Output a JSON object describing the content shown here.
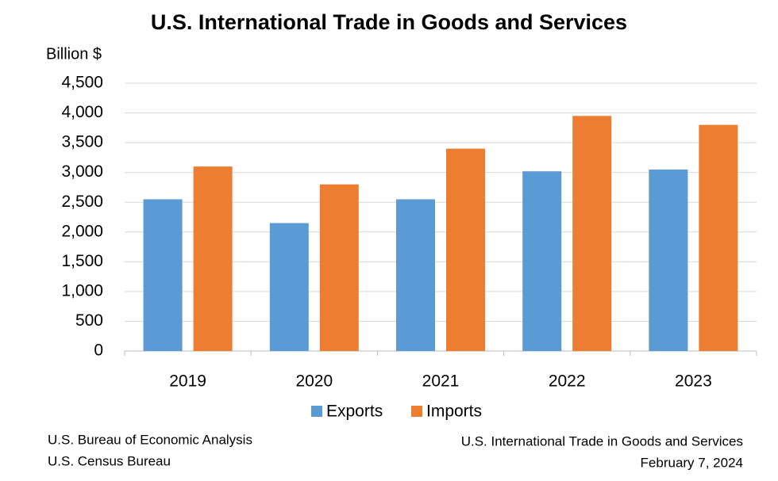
{
  "chart_data": {
    "type": "bar",
    "title": "U.S. International Trade in Goods and Services",
    "y_label": "Billion $",
    "categories": [
      "2019",
      "2020",
      "2021",
      "2022",
      "2023"
    ],
    "series": [
      {
        "name": "Exports",
        "color": "#5b9bd5",
        "values": [
          2550,
          2150,
          2550,
          3020,
          3050
        ]
      },
      {
        "name": "Imports",
        "color": "#ed7d31",
        "values": [
          3100,
          2800,
          3400,
          3950,
          3800
        ]
      }
    ],
    "ylim": [
      0,
      4500
    ],
    "yticks": [
      0,
      500,
      {
        "value": 1000,
        "label": "1,000"
      },
      {
        "value": 1500,
        "label": "1,500"
      },
      {
        "value": 2000,
        "label": "2,000"
      },
      {
        "value": 2500,
        "label": "2,500"
      },
      {
        "value": 3000,
        "label": "3,000"
      },
      {
        "value": 3500,
        "label": "3,500"
      },
      {
        "value": 4000,
        "label": "4,000"
      },
      {
        "value": 4500,
        "label": "4,500"
      }
    ],
    "grid": true,
    "legend": "bottom",
    "source": [
      "U.S. Bureau of Economic Analysis",
      "U.S. Census Bureau"
    ],
    "note": [
      "U.S. International Trade in Goods and Services",
      "February 7, 2024"
    ]
  }
}
